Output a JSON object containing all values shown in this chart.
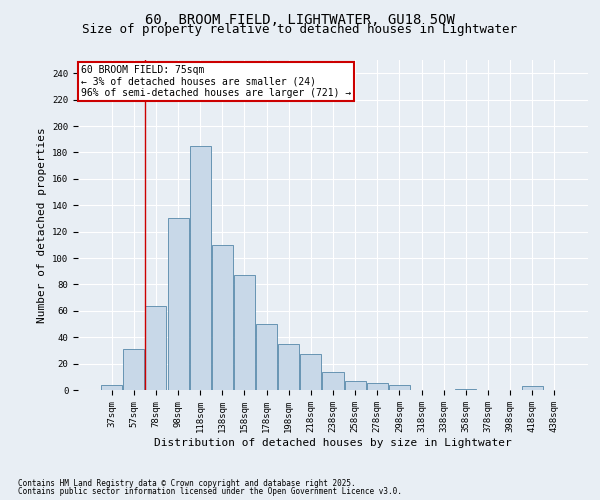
{
  "title_line1": "60, BROOM FIELD, LIGHTWATER, GU18 5QW",
  "title_line2": "Size of property relative to detached houses in Lightwater",
  "xlabel": "Distribution of detached houses by size in Lightwater",
  "ylabel": "Number of detached properties",
  "footnote_line1": "Contains HM Land Registry data © Crown copyright and database right 2025.",
  "footnote_line2": "Contains public sector information licensed under the Open Government Licence v3.0.",
  "annotation_line1": "60 BROOM FIELD: 75sqm",
  "annotation_line2": "← 3% of detached houses are smaller (24)",
  "annotation_line3": "96% of semi-detached houses are larger (721) →",
  "bar_labels": [
    "37sqm",
    "57sqm",
    "78sqm",
    "98sqm",
    "118sqm",
    "138sqm",
    "158sqm",
    "178sqm",
    "198sqm",
    "218sqm",
    "238sqm",
    "258sqm",
    "278sqm",
    "298sqm",
    "318sqm",
    "338sqm",
    "358sqm",
    "378sqm",
    "398sqm",
    "418sqm",
    "438sqm"
  ],
  "bar_values": [
    4,
    31,
    64,
    130,
    185,
    110,
    87,
    50,
    35,
    27,
    14,
    7,
    5,
    4,
    0,
    0,
    1,
    0,
    0,
    3,
    0
  ],
  "bar_color": "#c8d8e8",
  "bar_edge_color": "#5588aa",
  "vline_x_index": 1.5,
  "vline_color": "#cc0000",
  "ylim": [
    0,
    250
  ],
  "yticks": [
    0,
    20,
    40,
    60,
    80,
    100,
    120,
    140,
    160,
    180,
    200,
    220,
    240
  ],
  "bg_color": "#e8eef4",
  "grid_color": "#ffffff",
  "annotation_box_color": "#cc0000",
  "title_fontsize": 10,
  "subtitle_fontsize": 9,
  "tick_fontsize": 6.5,
  "label_fontsize": 8,
  "annotation_fontsize": 7,
  "footnote_fontsize": 5.5
}
